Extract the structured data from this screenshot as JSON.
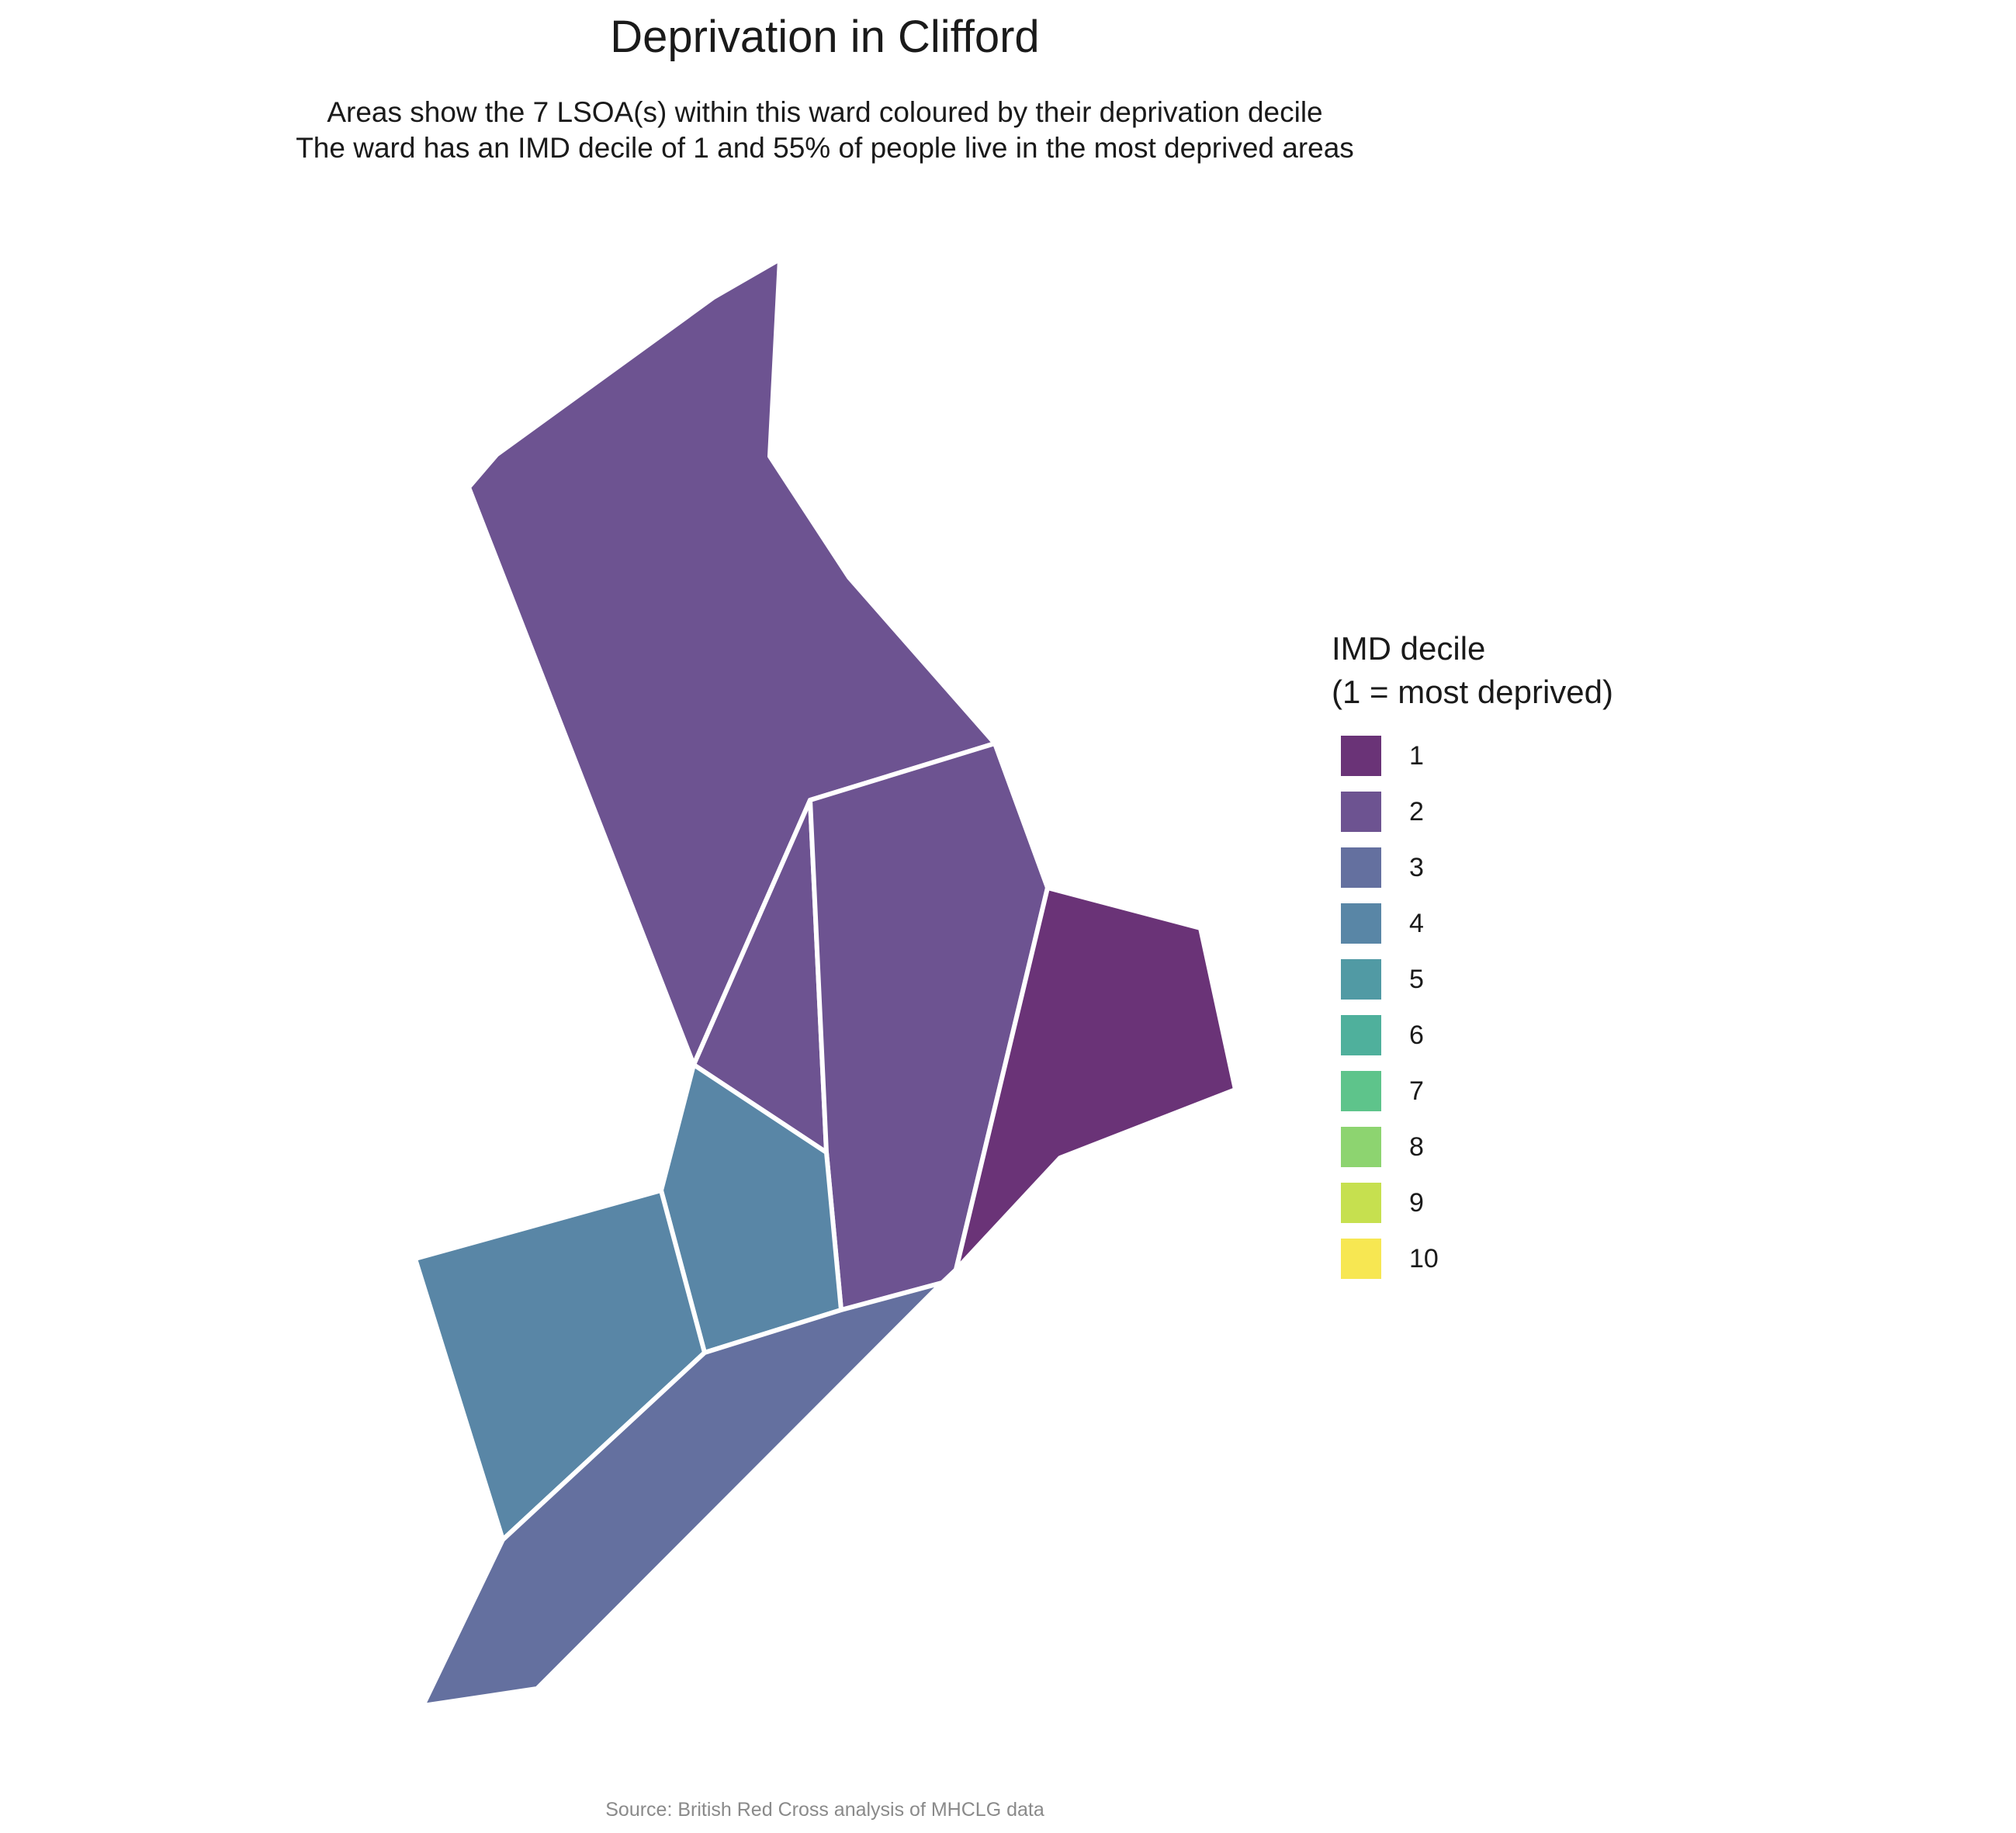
{
  "title": "Deprivation in Clifford",
  "subtitle_line1": "Areas show the 7 LSOA(s) within this ward coloured by their deprivation decile",
  "subtitle_line2": "The ward has an IMD decile of 1 and 55% of people live in the most deprived areas",
  "caption": "Source: British Red Cross analysis of MHCLG data",
  "legend": {
    "title_line1": "IMD decile",
    "title_line2": "(1 = most deprived)",
    "items": [
      {
        "label": "1",
        "color": "#6a3377"
      },
      {
        "label": "2",
        "color": "#6d5391"
      },
      {
        "label": "3",
        "color": "#64709f"
      },
      {
        "label": "4",
        "color": "#5986a6"
      },
      {
        "label": "5",
        "color": "#519aa4"
      },
      {
        "label": "6",
        "color": "#4fb09c"
      },
      {
        "label": "7",
        "color": "#5ec48b"
      },
      {
        "label": "8",
        "color": "#8dd470"
      },
      {
        "label": "9",
        "color": "#c6e04f"
      },
      {
        "label": "10",
        "color": "#f7e752"
      }
    ]
  },
  "areas": [
    {
      "name": "north",
      "decile": 2
    },
    {
      "name": "central-sliver",
      "decile": 2
    },
    {
      "name": "central-east",
      "decile": 2
    },
    {
      "name": "east",
      "decile": 1
    },
    {
      "name": "central-south",
      "decile": 4
    },
    {
      "name": "south-west",
      "decile": 4
    },
    {
      "name": "south",
      "decile": 3
    }
  ]
}
